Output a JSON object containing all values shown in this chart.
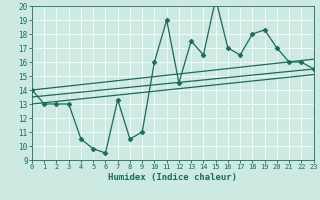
{
  "xlabel": "Humidex (Indice chaleur)",
  "xlim": [
    0,
    23
  ],
  "ylim": [
    9,
    20
  ],
  "xticks": [
    0,
    1,
    2,
    3,
    4,
    5,
    6,
    7,
    8,
    9,
    10,
    11,
    12,
    13,
    14,
    15,
    16,
    17,
    18,
    19,
    20,
    21,
    22,
    23
  ],
  "yticks": [
    9,
    10,
    11,
    12,
    13,
    14,
    15,
    16,
    17,
    18,
    19,
    20
  ],
  "bg_color": "#cce9e2",
  "line_color": "#1a6b5a",
  "series": [
    {
      "x": [
        0,
        1,
        2,
        3,
        4,
        5,
        6,
        7,
        8,
        9,
        10,
        11,
        12,
        13,
        14,
        15,
        16,
        17,
        18,
        19,
        20,
        21,
        22,
        23
      ],
      "y": [
        14,
        13,
        13,
        13,
        10.5,
        9.8,
        9.5,
        13.3,
        10.5,
        11,
        16,
        19,
        14.5,
        17.5,
        16.5,
        20.5,
        17,
        16.5,
        18,
        18.3,
        17,
        16,
        16,
        15.5
      ],
      "marker": "D",
      "markersize": 2.5,
      "linewidth": 0.9
    },
    {
      "x": [
        0,
        23
      ],
      "y": [
        14.0,
        16.2
      ],
      "marker": null,
      "linewidth": 0.9
    },
    {
      "x": [
        0,
        23
      ],
      "y": [
        13.5,
        15.5
      ],
      "marker": null,
      "linewidth": 0.9
    },
    {
      "x": [
        0,
        23
      ],
      "y": [
        13.0,
        15.1
      ],
      "marker": null,
      "linewidth": 0.9
    }
  ]
}
